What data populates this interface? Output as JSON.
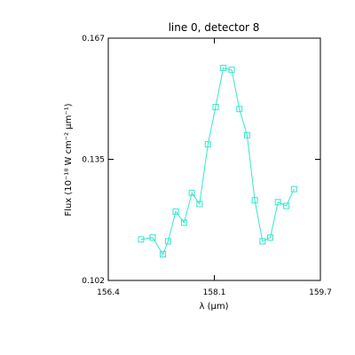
{
  "chart_data": {
    "type": "line",
    "title": "line 0, detector 8",
    "xlabel": "λ (μm)",
    "ylabel": "Flux (10⁻¹⁸ W cm⁻² μm⁻¹)",
    "xlim": [
      156.4,
      159.7
    ],
    "ylim": [
      0.102,
      0.167
    ],
    "xticks": [
      "156.4",
      "158.1",
      "159.7"
    ],
    "yticks": [
      "0.167",
      "0.135",
      "0.102"
    ],
    "grid": false,
    "marker": "square",
    "color": "#33e6cc",
    "series": [
      {
        "x": [
          156.91,
          157.09,
          157.25,
          157.33,
          157.45,
          157.58,
          157.7,
          157.82,
          157.95,
          158.07,
          158.19,
          158.32,
          158.44,
          158.56,
          158.68,
          158.8,
          158.92,
          159.04,
          159.17,
          159.29
        ],
        "y": [
          0.113,
          0.1135,
          0.109,
          0.1125,
          0.1205,
          0.1175,
          0.1255,
          0.1225,
          0.1385,
          0.1485,
          0.159,
          0.1585,
          0.148,
          0.141,
          0.1235,
          0.1125,
          0.1135,
          0.123,
          0.122,
          0.1265
        ]
      }
    ]
  }
}
